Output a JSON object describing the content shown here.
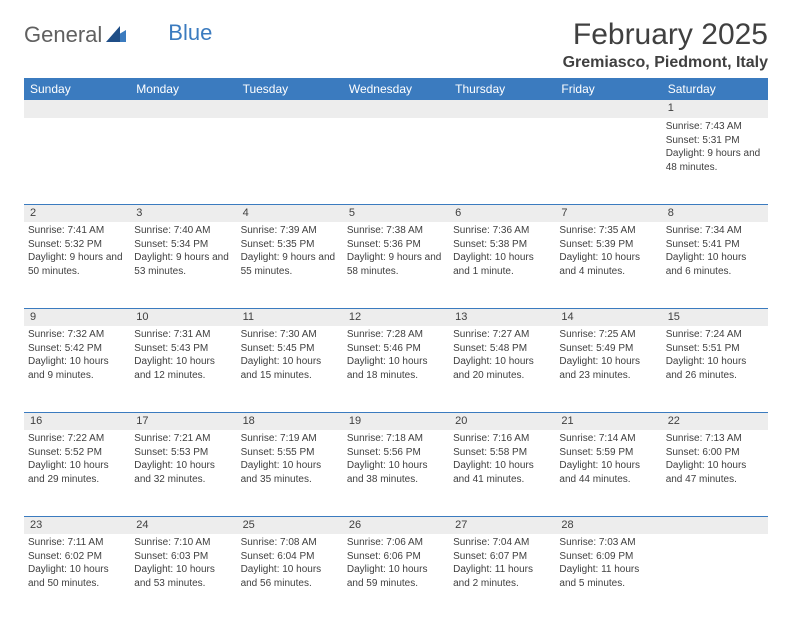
{
  "logo": {
    "part1": "General",
    "part2": "Blue"
  },
  "title": "February 2025",
  "location": "Gremiasco, Piedmont, Italy",
  "header_bg": "#3b7bbf",
  "header_fg": "#ffffff",
  "daynum_bg": "#ededed",
  "divider_color": "#3b7bbf",
  "text_color": "#404040",
  "font_family": "Arial, Helvetica, sans-serif",
  "day_headers": [
    "Sunday",
    "Monday",
    "Tuesday",
    "Wednesday",
    "Thursday",
    "Friday",
    "Saturday"
  ],
  "weeks": [
    [
      null,
      null,
      null,
      null,
      null,
      null,
      {
        "n": "1",
        "sunrise": "7:43 AM",
        "sunset": "5:31 PM",
        "daylight": "9 hours and 48 minutes."
      }
    ],
    [
      {
        "n": "2",
        "sunrise": "7:41 AM",
        "sunset": "5:32 PM",
        "daylight": "9 hours and 50 minutes."
      },
      {
        "n": "3",
        "sunrise": "7:40 AM",
        "sunset": "5:34 PM",
        "daylight": "9 hours and 53 minutes."
      },
      {
        "n": "4",
        "sunrise": "7:39 AM",
        "sunset": "5:35 PM",
        "daylight": "9 hours and 55 minutes."
      },
      {
        "n": "5",
        "sunrise": "7:38 AM",
        "sunset": "5:36 PM",
        "daylight": "9 hours and 58 minutes."
      },
      {
        "n": "6",
        "sunrise": "7:36 AM",
        "sunset": "5:38 PM",
        "daylight": "10 hours and 1 minute."
      },
      {
        "n": "7",
        "sunrise": "7:35 AM",
        "sunset": "5:39 PM",
        "daylight": "10 hours and 4 minutes."
      },
      {
        "n": "8",
        "sunrise": "7:34 AM",
        "sunset": "5:41 PM",
        "daylight": "10 hours and 6 minutes."
      }
    ],
    [
      {
        "n": "9",
        "sunrise": "7:32 AM",
        "sunset": "5:42 PM",
        "daylight": "10 hours and 9 minutes."
      },
      {
        "n": "10",
        "sunrise": "7:31 AM",
        "sunset": "5:43 PM",
        "daylight": "10 hours and 12 minutes."
      },
      {
        "n": "11",
        "sunrise": "7:30 AM",
        "sunset": "5:45 PM",
        "daylight": "10 hours and 15 minutes."
      },
      {
        "n": "12",
        "sunrise": "7:28 AM",
        "sunset": "5:46 PM",
        "daylight": "10 hours and 18 minutes."
      },
      {
        "n": "13",
        "sunrise": "7:27 AM",
        "sunset": "5:48 PM",
        "daylight": "10 hours and 20 minutes."
      },
      {
        "n": "14",
        "sunrise": "7:25 AM",
        "sunset": "5:49 PM",
        "daylight": "10 hours and 23 minutes."
      },
      {
        "n": "15",
        "sunrise": "7:24 AM",
        "sunset": "5:51 PM",
        "daylight": "10 hours and 26 minutes."
      }
    ],
    [
      {
        "n": "16",
        "sunrise": "7:22 AM",
        "sunset": "5:52 PM",
        "daylight": "10 hours and 29 minutes."
      },
      {
        "n": "17",
        "sunrise": "7:21 AM",
        "sunset": "5:53 PM",
        "daylight": "10 hours and 32 minutes."
      },
      {
        "n": "18",
        "sunrise": "7:19 AM",
        "sunset": "5:55 PM",
        "daylight": "10 hours and 35 minutes."
      },
      {
        "n": "19",
        "sunrise": "7:18 AM",
        "sunset": "5:56 PM",
        "daylight": "10 hours and 38 minutes."
      },
      {
        "n": "20",
        "sunrise": "7:16 AM",
        "sunset": "5:58 PM",
        "daylight": "10 hours and 41 minutes."
      },
      {
        "n": "21",
        "sunrise": "7:14 AM",
        "sunset": "5:59 PM",
        "daylight": "10 hours and 44 minutes."
      },
      {
        "n": "22",
        "sunrise": "7:13 AM",
        "sunset": "6:00 PM",
        "daylight": "10 hours and 47 minutes."
      }
    ],
    [
      {
        "n": "23",
        "sunrise": "7:11 AM",
        "sunset": "6:02 PM",
        "daylight": "10 hours and 50 minutes."
      },
      {
        "n": "24",
        "sunrise": "7:10 AM",
        "sunset": "6:03 PM",
        "daylight": "10 hours and 53 minutes."
      },
      {
        "n": "25",
        "sunrise": "7:08 AM",
        "sunset": "6:04 PM",
        "daylight": "10 hours and 56 minutes."
      },
      {
        "n": "26",
        "sunrise": "7:06 AM",
        "sunset": "6:06 PM",
        "daylight": "10 hours and 59 minutes."
      },
      {
        "n": "27",
        "sunrise": "7:04 AM",
        "sunset": "6:07 PM",
        "daylight": "11 hours and 2 minutes."
      },
      {
        "n": "28",
        "sunrise": "7:03 AM",
        "sunset": "6:09 PM",
        "daylight": "11 hours and 5 minutes."
      },
      null
    ]
  ],
  "labels": {
    "sunrise": "Sunrise:",
    "sunset": "Sunset:",
    "daylight": "Daylight:"
  }
}
